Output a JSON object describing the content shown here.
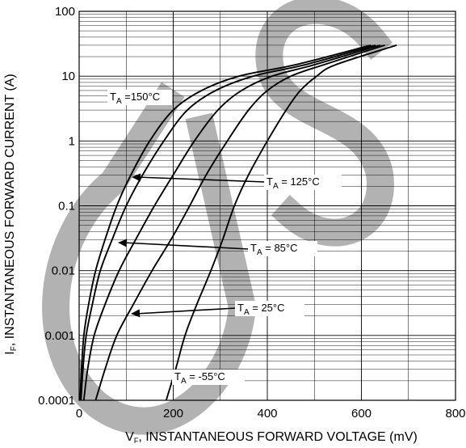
{
  "chart_data": {
    "type": "line",
    "title": "",
    "xlabel": "V",
    "xlabel_sub": "F",
    "xlabel_rest": ", INSTANTANEOUS FORWARD VOLTAGE (mV)",
    "ylabel": "I",
    "ylabel_sub": "F",
    "ylabel_rest": ", INSTANTANEOUS FORWARD CURRENT (A)",
    "xlim": [
      0,
      800
    ],
    "ylim": [
      0.0001,
      100
    ],
    "yscale": "log",
    "grid": true,
    "x_ticks": [
      "0",
      "200",
      "400",
      "600",
      "800"
    ],
    "y_ticks": [
      "0.0001",
      "0.001",
      "0.01",
      "0.1",
      "1",
      "10",
      "100"
    ],
    "watermark_text": "DS",
    "colors": {
      "curve": "#000000",
      "grid": "#000000",
      "watermark": "#aaaaaa"
    },
    "series": [
      {
        "label": "150°C",
        "points": [
          [
            2,
            0.0001
          ],
          [
            5,
            0.0003
          ],
          [
            10,
            0.001
          ],
          [
            20,
            0.003
          ],
          [
            35,
            0.01
          ],
          [
            55,
            0.03
          ],
          [
            80,
            0.1
          ],
          [
            110,
            0.3
          ],
          [
            150,
            1
          ],
          [
            200,
            3
          ],
          [
            260,
            6
          ],
          [
            340,
            10
          ],
          [
            460,
            15
          ],
          [
            620,
            30
          ]
        ]
      },
      {
        "label": "125°C",
        "points": [
          [
            4,
            0.0001
          ],
          [
            8,
            0.0003
          ],
          [
            15,
            0.001
          ],
          [
            28,
            0.003
          ],
          [
            45,
            0.01
          ],
          [
            70,
            0.03
          ],
          [
            100,
            0.1
          ],
          [
            135,
            0.3
          ],
          [
            180,
            1
          ],
          [
            230,
            3
          ],
          [
            290,
            6
          ],
          [
            370,
            10
          ],
          [
            480,
            15
          ],
          [
            630,
            30
          ]
        ]
      },
      {
        "label": "85°C",
        "points": [
          [
            10,
            0.0001
          ],
          [
            18,
            0.0003
          ],
          [
            32,
            0.001
          ],
          [
            55,
            0.003
          ],
          [
            85,
            0.01
          ],
          [
            120,
            0.03
          ],
          [
            160,
            0.1
          ],
          [
            200,
            0.3
          ],
          [
            245,
            1
          ],
          [
            295,
            3
          ],
          [
            345,
            6
          ],
          [
            410,
            10
          ],
          [
            500,
            15
          ],
          [
            640,
            30
          ]
        ]
      },
      {
        "label": "25°C",
        "points": [
          [
            35,
            0.0001
          ],
          [
            55,
            0.0003
          ],
          [
            80,
            0.001
          ],
          [
            115,
            0.003
          ],
          [
            155,
            0.01
          ],
          [
            195,
            0.03
          ],
          [
            235,
            0.1
          ],
          [
            270,
            0.3
          ],
          [
            315,
            1
          ],
          [
            360,
            3
          ],
          [
            400,
            6
          ],
          [
            450,
            10
          ],
          [
            520,
            15
          ],
          [
            650,
            30
          ]
        ]
      },
      {
        "label": "-55°C",
        "points": [
          [
            185,
            0.0001
          ],
          [
            205,
            0.0003
          ],
          [
            225,
            0.001
          ],
          [
            250,
            0.003
          ],
          [
            280,
            0.01
          ],
          [
            305,
            0.03
          ],
          [
            330,
            0.1
          ],
          [
            360,
            0.3
          ],
          [
            400,
            1
          ],
          [
            440,
            3
          ],
          [
            470,
            6
          ],
          [
            505,
            10
          ],
          [
            545,
            15
          ],
          [
            675,
            30
          ]
        ]
      }
    ],
    "annotations": [
      {
        "prefix": "T",
        "sub": "A",
        "text": " =150°C",
        "series": "150°C"
      },
      {
        "prefix": "T",
        "sub": "A",
        "text": " = 125°C",
        "series": "125°C"
      },
      {
        "prefix": "T",
        "sub": "A",
        "text": " = 85°C",
        "series": "85°C"
      },
      {
        "prefix": "T",
        "sub": "A",
        "text": " = 25°C",
        "series": "25°C"
      },
      {
        "prefix": "T",
        "sub": "A",
        "text": " = -55°C",
        "series": "-55°C"
      }
    ]
  }
}
